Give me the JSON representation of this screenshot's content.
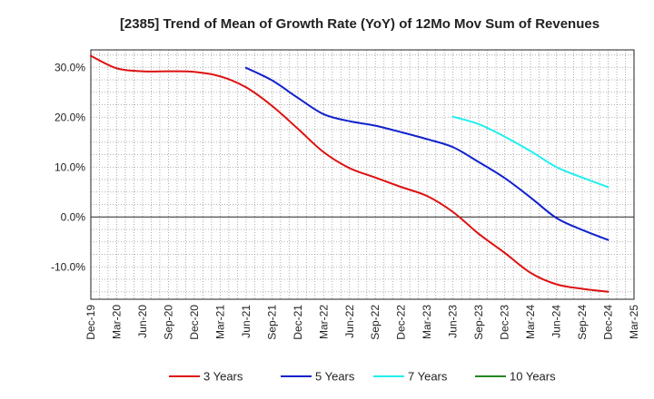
{
  "chart_data": {
    "type": "line",
    "title": "[2385]  Trend of Mean of Growth Rate (YoY) of 12Mo Mov Sum of Revenues",
    "xlabel": "",
    "ylabel": "",
    "ylim": [
      -16.5,
      33.5
    ],
    "yticks": [
      30,
      20,
      10,
      0,
      -10
    ],
    "y_tick_labels": [
      "30.0%",
      "20.0%",
      "10.0%",
      "0.0%",
      "-10.0%"
    ],
    "x_tick_labels": [
      "Dec-19",
      "Mar-20",
      "Jun-20",
      "Sep-20",
      "Dec-20",
      "Mar-21",
      "Jun-21",
      "Sep-21",
      "Dec-21",
      "Mar-22",
      "Jun-22",
      "Sep-22",
      "Dec-22",
      "Mar-23",
      "Jun-23",
      "Sep-23",
      "Dec-23",
      "Mar-24",
      "Jun-24",
      "Sep-24",
      "Dec-24",
      "Mar-25"
    ],
    "x_domain_months": [
      0,
      63
    ],
    "grid": true,
    "legend_position": "bottom",
    "series": [
      {
        "name": "3 Years",
        "color": "#dd1111",
        "x_months": [
          0,
          3,
          6,
          9,
          12,
          15,
          18,
          21,
          24,
          27,
          30,
          33,
          36,
          39,
          42,
          45,
          48,
          51,
          54,
          57,
          60
        ],
        "values": [
          32.3,
          29.8,
          29.2,
          29.2,
          29.1,
          28.2,
          26.0,
          22.3,
          17.7,
          13.0,
          9.8,
          7.9,
          6.0,
          4.2,
          1.0,
          -3.4,
          -7.2,
          -11.2,
          -13.5,
          -14.4,
          -15.0
        ]
      },
      {
        "name": "5 Years",
        "color": "#1122cc",
        "x_months": [
          18,
          21,
          24,
          27,
          30,
          33,
          36,
          39,
          42,
          45,
          48,
          51,
          54,
          57,
          60
        ],
        "values": [
          29.9,
          27.4,
          23.9,
          20.6,
          19.2,
          18.3,
          17.0,
          15.6,
          14.0,
          11.0,
          7.8,
          3.9,
          -0.2,
          -2.6,
          -4.6
        ]
      },
      {
        "name": "7 Years",
        "color": "#22eeee",
        "x_months": [
          42,
          45,
          48,
          51,
          54,
          57,
          60
        ],
        "values": [
          20.1,
          18.6,
          16.1,
          13.2,
          10.0,
          7.9,
          6.0
        ]
      },
      {
        "name": "10 Years",
        "color": "#228822",
        "x_months": [],
        "values": []
      }
    ]
  }
}
